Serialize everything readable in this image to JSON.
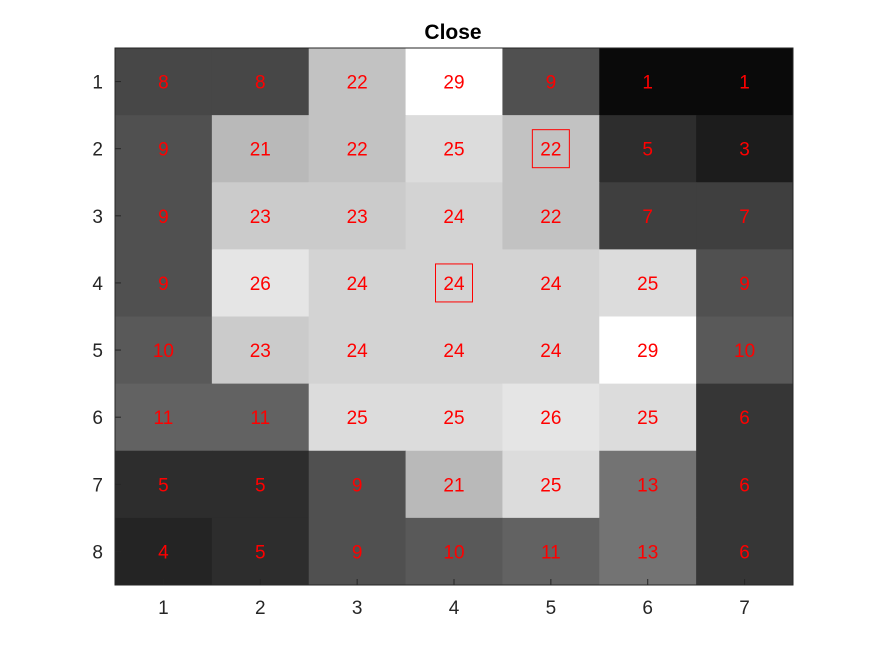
{
  "chart_data": {
    "type": "heatmap",
    "title": "Close",
    "colormap": "gray",
    "xlabel": "",
    "ylabel": "",
    "x_tick_labels": [
      "1",
      "2",
      "3",
      "4",
      "5",
      "6",
      "7"
    ],
    "y_tick_labels": [
      "1",
      "2",
      "3",
      "4",
      "5",
      "6",
      "7",
      "8"
    ],
    "values": [
      [
        8,
        8,
        22,
        29,
        9,
        1,
        1
      ],
      [
        9,
        21,
        22,
        25,
        22,
        5,
        3
      ],
      [
        9,
        23,
        23,
        24,
        22,
        7,
        7
      ],
      [
        9,
        26,
        24,
        24,
        24,
        25,
        9
      ],
      [
        10,
        23,
        24,
        24,
        24,
        29,
        10
      ],
      [
        11,
        11,
        25,
        25,
        26,
        25,
        6
      ],
      [
        5,
        5,
        9,
        21,
        25,
        13,
        6
      ],
      [
        4,
        5,
        9,
        10,
        11,
        13,
        6
      ]
    ],
    "value_range": [
      1,
      29
    ],
    "highlighted_cells": [
      {
        "row": 2,
        "col": 5
      },
      {
        "row": 4,
        "col": 4
      }
    ],
    "label_color": "#ff0000",
    "highlight_color": "#ff0000"
  }
}
